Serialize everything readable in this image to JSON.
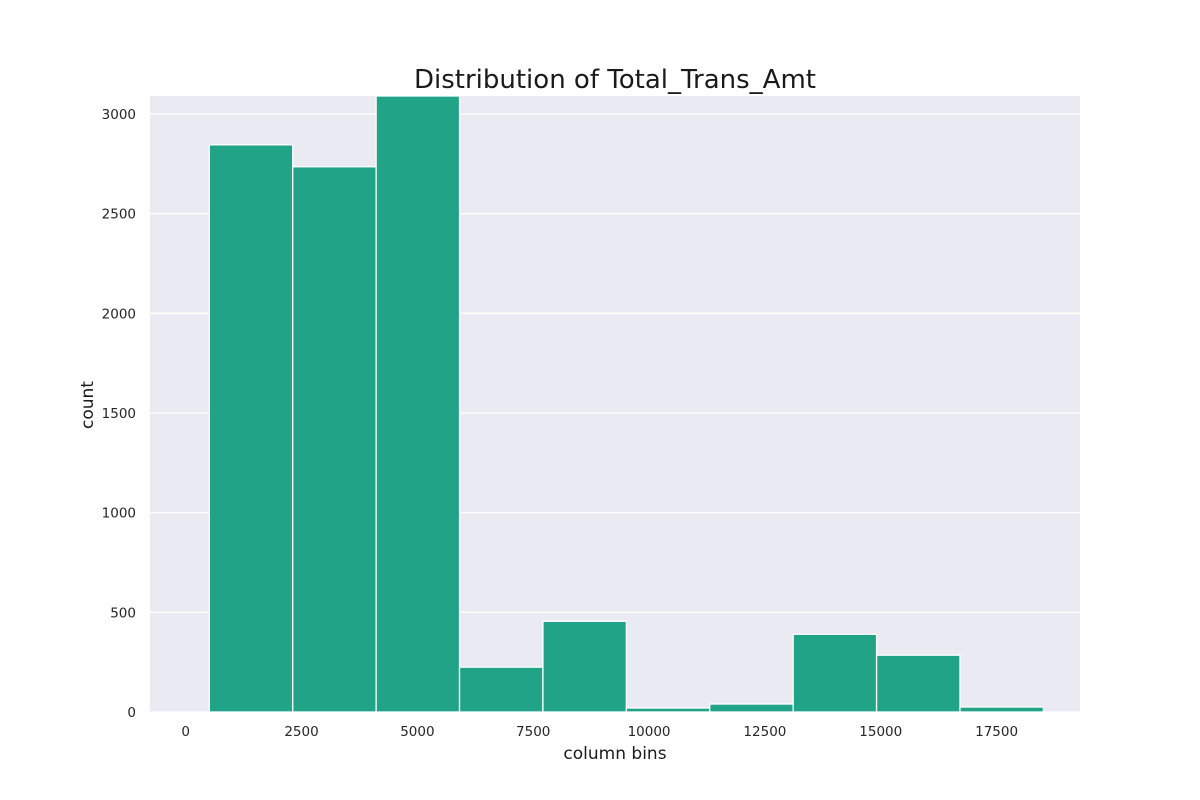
{
  "chart_data": {
    "type": "bar",
    "title": "Distribution of Total_Trans_Amt",
    "xlabel": "column bins",
    "ylabel": "count",
    "xlim": [
      -770,
      19300
    ],
    "ylim": [
      0,
      3090
    ],
    "xticks": [
      0,
      2500,
      5000,
      7500,
      10000,
      12500,
      15000,
      17500
    ],
    "yticks": [
      0,
      500,
      1000,
      1500,
      2000,
      2500,
      3000
    ],
    "grid": true,
    "bins": [
      {
        "x0": 510,
        "x1": 2310,
        "count": 2845
      },
      {
        "x0": 2310,
        "x1": 4110,
        "count": 2735
      },
      {
        "x0": 4110,
        "x1": 5910,
        "count": 3090
      },
      {
        "x0": 5910,
        "x1": 7710,
        "count": 225
      },
      {
        "x0": 7710,
        "x1": 9510,
        "count": 455
      },
      {
        "x0": 9510,
        "x1": 11310,
        "count": 20
      },
      {
        "x0": 11310,
        "x1": 13110,
        "count": 40
      },
      {
        "x0": 13110,
        "x1": 14910,
        "count": 390
      },
      {
        "x0": 14910,
        "x1": 16710,
        "count": 285
      },
      {
        "x0": 16710,
        "x1": 18510,
        "count": 25
      }
    ],
    "colors": {
      "bar": "#20a387",
      "plot_background": "#eaeaf2",
      "grid": "#ffffff"
    }
  }
}
